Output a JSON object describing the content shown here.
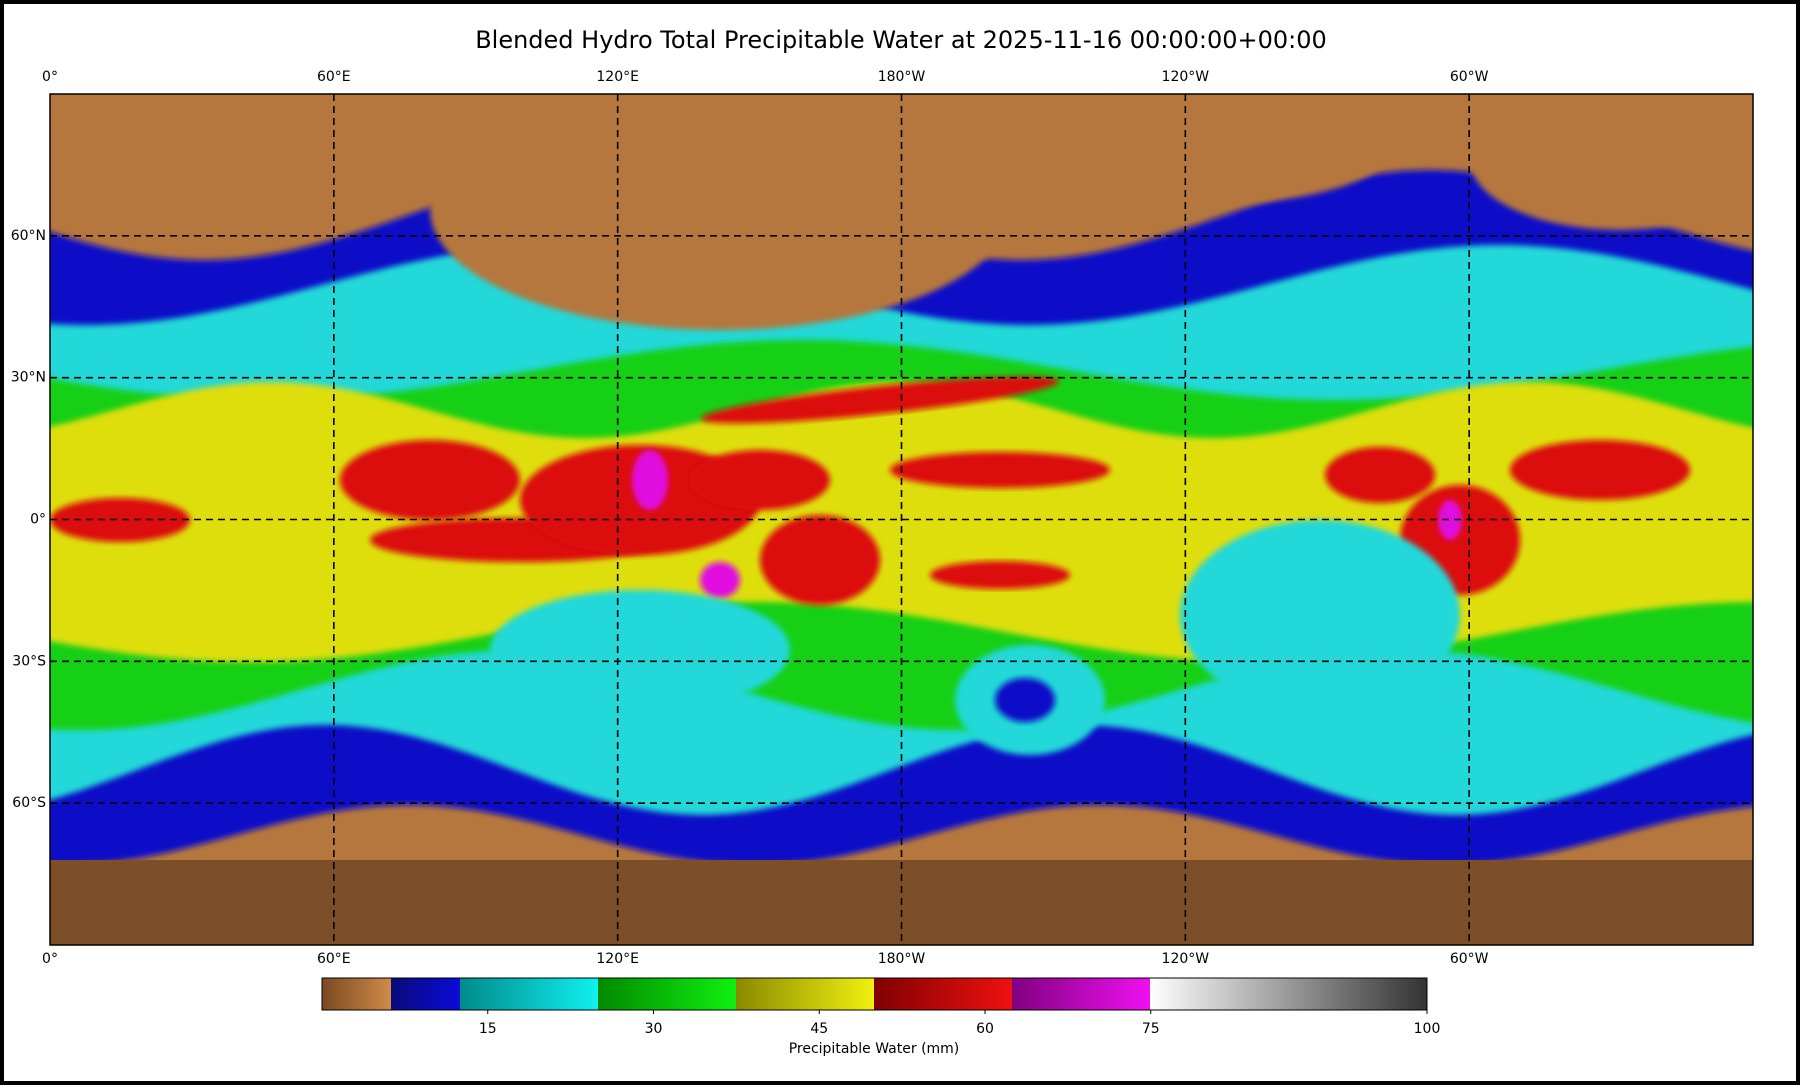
{
  "title": "Blended Hydro Total Precipitable Water at 2025-11-16 00:00:00+00:00",
  "map": {
    "xlim": [
      0,
      360
    ],
    "ylim": [
      -90,
      90
    ],
    "lon_ticks": [
      {
        "value": 0,
        "label": "0°"
      },
      {
        "value": 60,
        "label": "60°E"
      },
      {
        "value": 120,
        "label": "120°E"
      },
      {
        "value": 180,
        "label": "180°W"
      },
      {
        "value": 240,
        "label": "120°W"
      },
      {
        "value": 300,
        "label": "60°W"
      }
    ],
    "lat_ticks": [
      {
        "value": 60,
        "label": "60°N"
      },
      {
        "value": 30,
        "label": "30°N"
      },
      {
        "value": 0,
        "label": "0°"
      },
      {
        "value": -30,
        "label": "30°S"
      },
      {
        "value": -60,
        "label": "60°S"
      }
    ]
  },
  "colorbar": {
    "range": [
      0,
      100
    ],
    "ticks": [
      15,
      30,
      45,
      60,
      75,
      100
    ],
    "label": "Precipitable Water (mm)"
  }
}
